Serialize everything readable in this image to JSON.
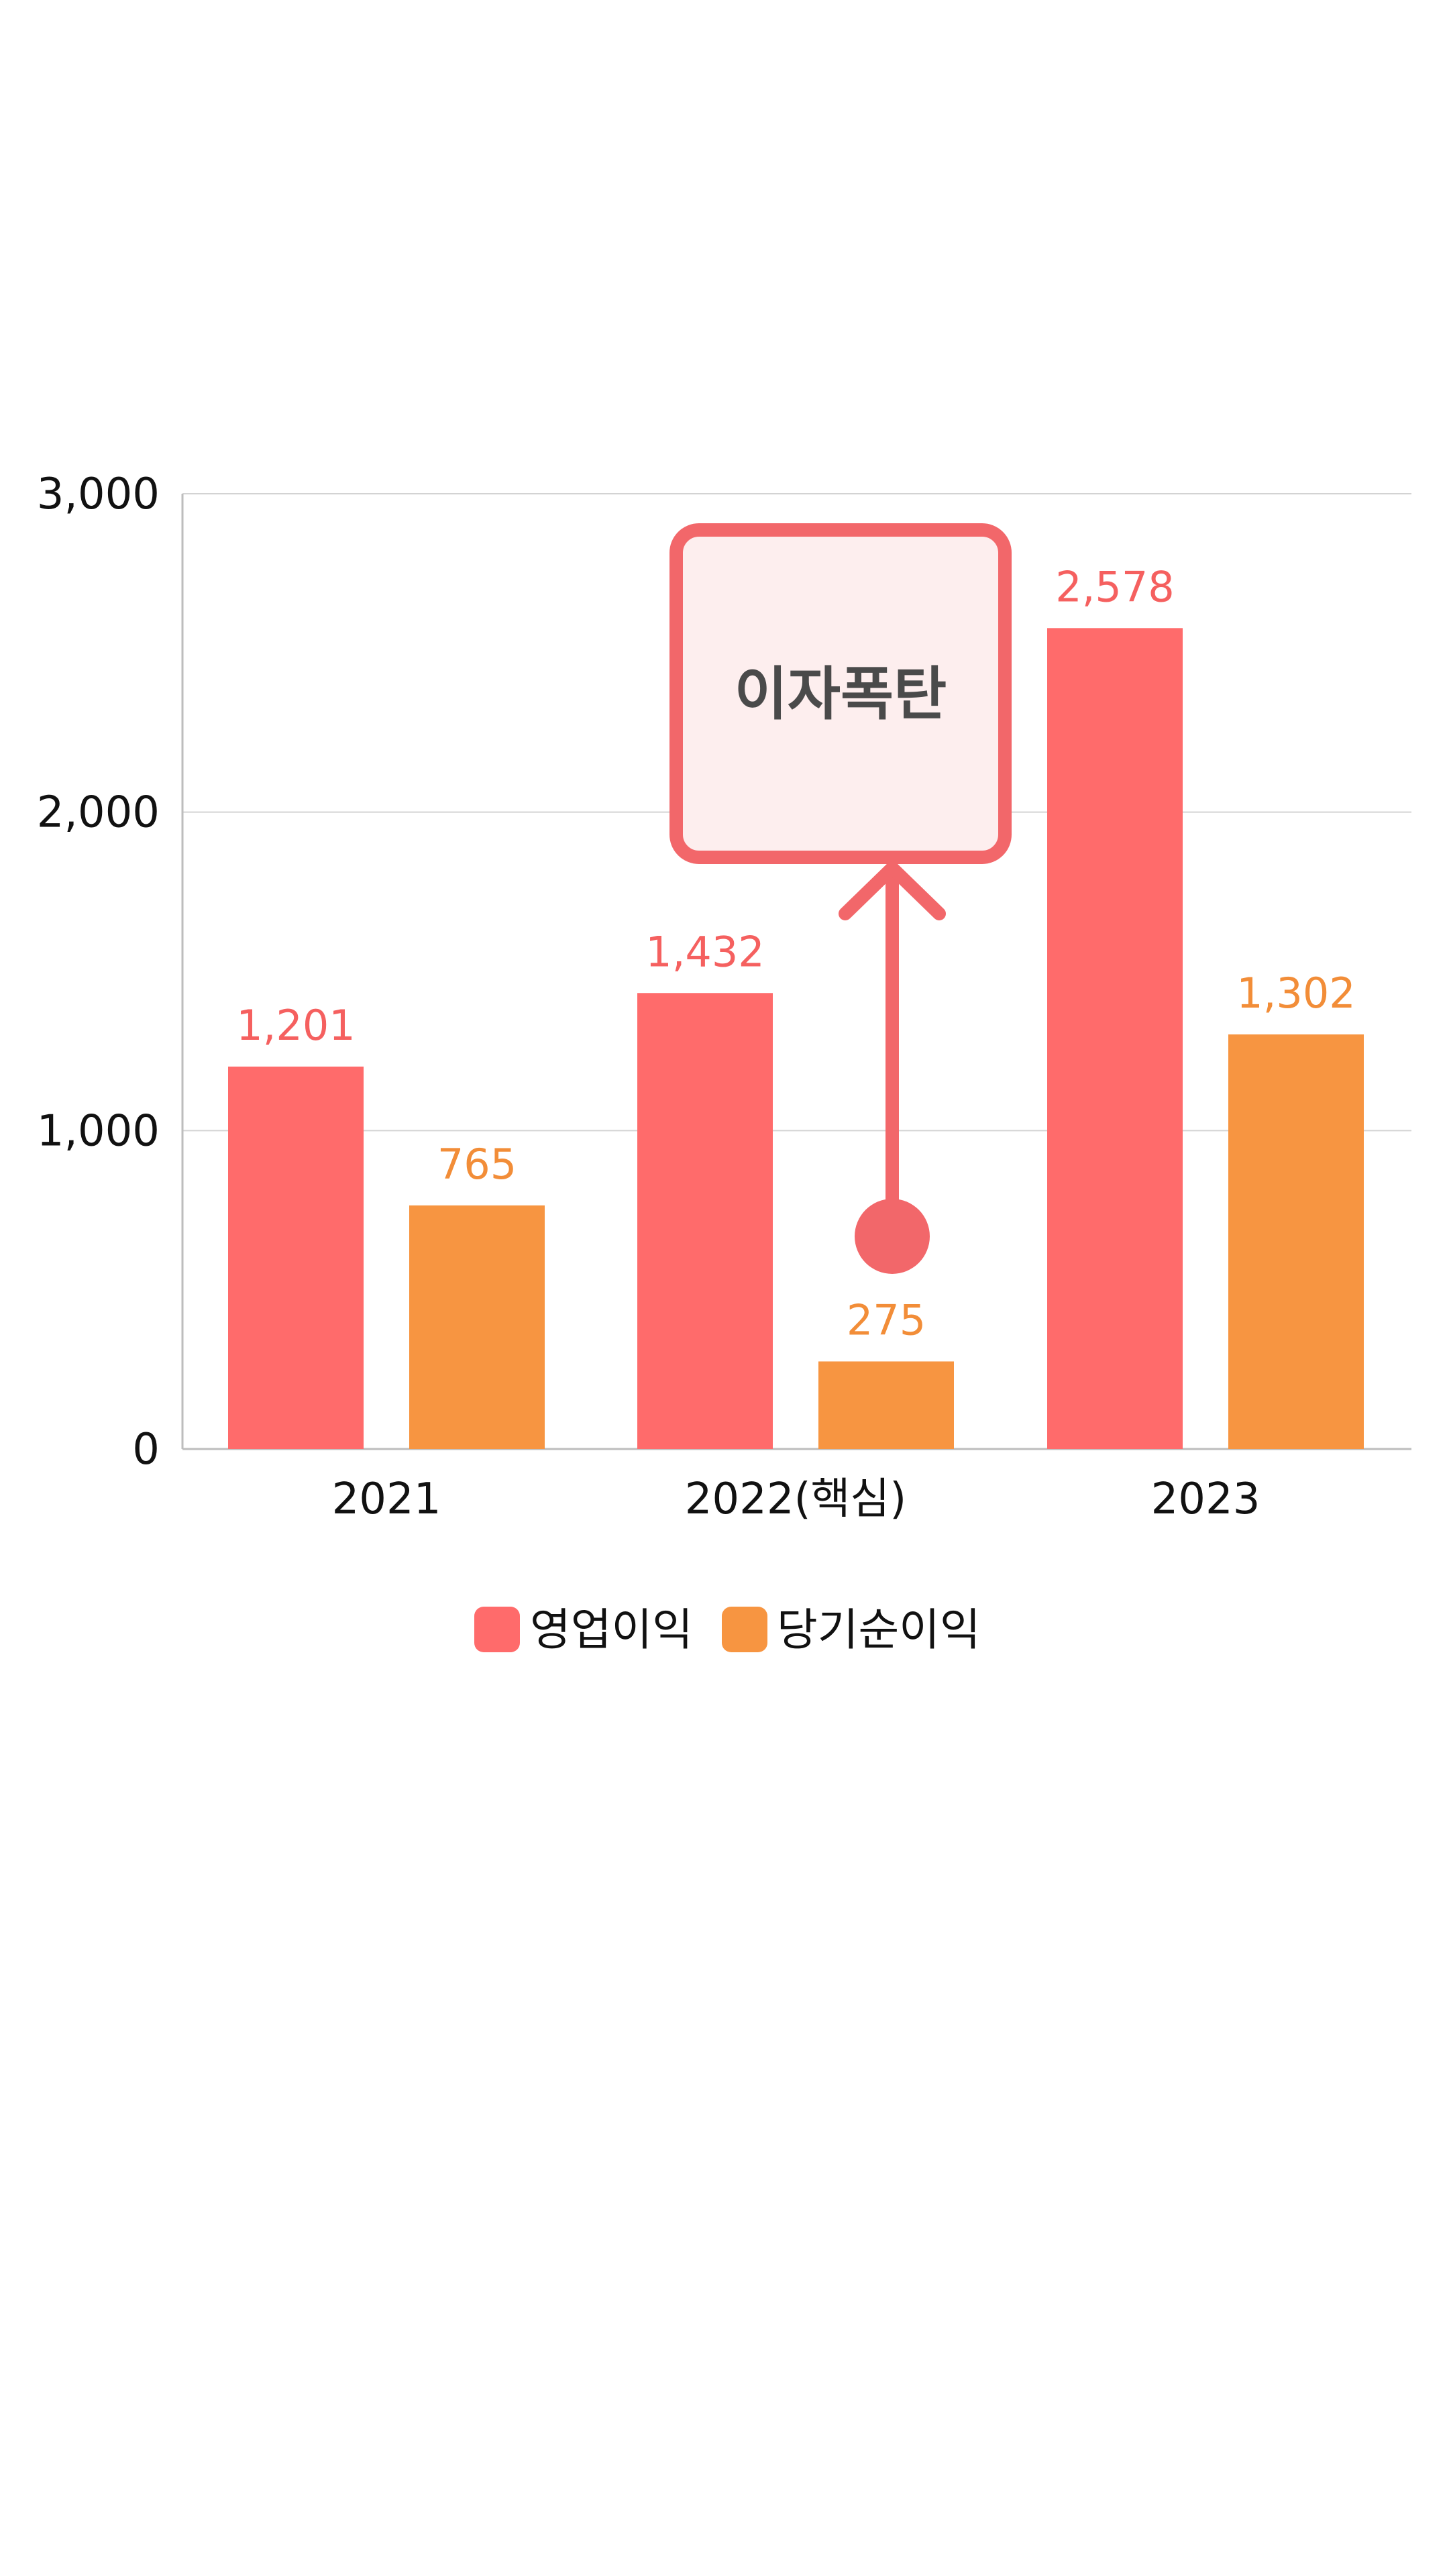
{
  "chart_data": {
    "type": "bar",
    "categories": [
      "2021",
      "2022(핵심)",
      "2023"
    ],
    "series": [
      {
        "name": "영업이익",
        "values": [
          1201,
          1432,
          2578
        ],
        "labels": [
          "1,201",
          "1,432",
          "2,578"
        ],
        "color": "#ff6b6b",
        "label_color": "#f5605f"
      },
      {
        "name": "당기순이익",
        "values": [
          765,
          275,
          1302
        ],
        "labels": [
          "765",
          "275",
          "1,302"
        ],
        "color": "#f79541",
        "label_color": "#f28d38"
      }
    ],
    "ylim": [
      0,
      3000
    ],
    "yticks": [
      0,
      1000,
      2000,
      3000
    ],
    "ytick_labels": [
      "0",
      "1,000",
      "2,000",
      "3,000"
    ],
    "grid": true,
    "legend_position": "bottom-center",
    "annotation": {
      "text": "이자폭탄",
      "points_to": "2022(핵심) 당기순이익",
      "border_color": "#f2676a",
      "fill_color": "#fdeeee"
    }
  }
}
